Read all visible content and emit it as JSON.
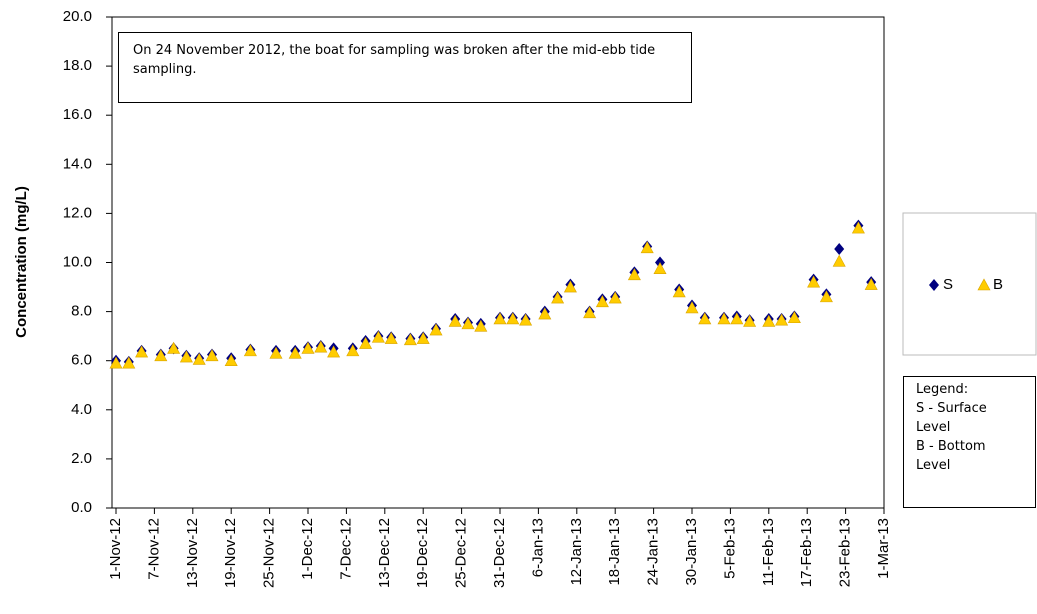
{
  "chart_data": {
    "type": "scatter",
    "y_label": "Concentration (mg/L)",
    "annotation": "On 24 November 2012, the boat for sampling was broken after the mid-ebb tide sampling.",
    "note": [
      "Legend:",
      "S - Surface Level",
      "B - Bottom Level"
    ],
    "x": [
      "2012-11-01",
      "2012-11-03",
      "2012-11-05",
      "2012-11-08",
      "2012-11-10",
      "2012-11-12",
      "2012-11-14",
      "2012-11-16",
      "2012-11-19",
      "2012-11-22",
      "2012-11-26",
      "2012-11-29",
      "2012-12-01",
      "2012-12-03",
      "2012-12-05",
      "2012-12-08",
      "2012-12-10",
      "2012-12-12",
      "2012-12-14",
      "2012-12-17",
      "2012-12-19",
      "2012-12-21",
      "2012-12-24",
      "2012-12-26",
      "2012-12-28",
      "2012-12-31",
      "2013-01-02",
      "2013-01-04",
      "2013-01-07",
      "2013-01-09",
      "2013-01-11",
      "2013-01-14",
      "2013-01-16",
      "2013-01-18",
      "2013-01-21",
      "2013-01-23",
      "2013-01-25",
      "2013-01-28",
      "2013-01-30",
      "2013-02-01",
      "2013-02-04",
      "2013-02-06",
      "2013-02-08",
      "2013-02-11",
      "2013-02-13",
      "2013-02-15",
      "2013-02-18",
      "2013-02-20",
      "2013-02-22",
      "2013-02-25",
      "2013-02-27"
    ],
    "series": [
      {
        "name": "S",
        "color": "#000080",
        "marker": "diamond",
        "values": [
          6.0,
          5.95,
          6.4,
          6.25,
          6.5,
          6.2,
          6.1,
          6.25,
          6.1,
          6.45,
          6.4,
          6.4,
          6.55,
          6.6,
          6.5,
          6.5,
          6.8,
          7.0,
          6.95,
          6.9,
          6.95,
          7.3,
          7.7,
          7.55,
          7.5,
          7.75,
          7.75,
          7.7,
          8.0,
          8.6,
          9.1,
          8.0,
          8.5,
          8.6,
          9.6,
          10.65,
          10.0,
          8.9,
          8.25,
          7.75,
          7.75,
          7.8,
          7.65,
          7.7,
          7.7,
          7.8,
          9.3,
          8.7,
          10.55,
          11.5,
          9.2
        ]
      },
      {
        "name": "B",
        "color": "#ffcc00",
        "marker": "triangle",
        "values": [
          5.9,
          5.9,
          6.35,
          6.2,
          6.5,
          6.15,
          6.05,
          6.2,
          6.0,
          6.4,
          6.3,
          6.3,
          6.5,
          6.55,
          6.35,
          6.4,
          6.7,
          6.95,
          6.9,
          6.85,
          6.9,
          7.25,
          7.6,
          7.5,
          7.4,
          7.7,
          7.7,
          7.65,
          7.9,
          8.55,
          9.0,
          7.95,
          8.4,
          8.55,
          9.5,
          10.6,
          9.75,
          8.8,
          8.15,
          7.7,
          7.7,
          7.7,
          7.6,
          7.6,
          7.65,
          7.75,
          9.2,
          8.6,
          10.05,
          11.4,
          9.1
        ]
      }
    ],
    "xlim": [
      "2012-11-01",
      "2013-03-01"
    ],
    "xticks": [
      {
        "value": "2012-11-01",
        "label": "1-Nov-12"
      },
      {
        "value": "2012-11-07",
        "label": "7-Nov-12"
      },
      {
        "value": "2012-11-13",
        "label": "13-Nov-12"
      },
      {
        "value": "2012-11-19",
        "label": "19-Nov-12"
      },
      {
        "value": "2012-11-25",
        "label": "25-Nov-12"
      },
      {
        "value": "2012-12-01",
        "label": "1-Dec-12"
      },
      {
        "value": "2012-12-07",
        "label": "7-Dec-12"
      },
      {
        "value": "2012-12-13",
        "label": "13-Dec-12"
      },
      {
        "value": "2012-12-19",
        "label": "19-Dec-12"
      },
      {
        "value": "2012-12-25",
        "label": "25-Dec-12"
      },
      {
        "value": "2012-12-31",
        "label": "31-Dec-12"
      },
      {
        "value": "2013-01-06",
        "label": "6-Jan-13"
      },
      {
        "value": "2013-01-12",
        "label": "12-Jan-13"
      },
      {
        "value": "2013-01-18",
        "label": "18-Jan-13"
      },
      {
        "value": "2013-01-24",
        "label": "24-Jan-13"
      },
      {
        "value": "2013-01-30",
        "label": "30-Jan-13"
      },
      {
        "value": "2013-02-05",
        "label": "5-Feb-13"
      },
      {
        "value": "2013-02-11",
        "label": "11-Feb-13"
      },
      {
        "value": "2013-02-17",
        "label": "17-Feb-13"
      },
      {
        "value": "2013-02-23",
        "label": "23-Feb-13"
      },
      {
        "value": "2013-03-01",
        "label": "1-Mar-13"
      }
    ],
    "ylim": [
      0,
      20
    ],
    "yticks": [
      {
        "value": 0,
        "label": "0.0"
      },
      {
        "value": 2,
        "label": "2.0"
      },
      {
        "value": 4,
        "label": "4.0"
      },
      {
        "value": 6,
        "label": "6.0"
      },
      {
        "value": 8,
        "label": "8.0"
      },
      {
        "value": 10,
        "label": "10.0"
      },
      {
        "value": 12,
        "label": "12.0"
      },
      {
        "value": 14,
        "label": "14.0"
      },
      {
        "value": 16,
        "label": "16.0"
      },
      {
        "value": 18,
        "label": "18.0"
      },
      {
        "value": 20,
        "label": "20.0"
      }
    ],
    "grid": false
  }
}
